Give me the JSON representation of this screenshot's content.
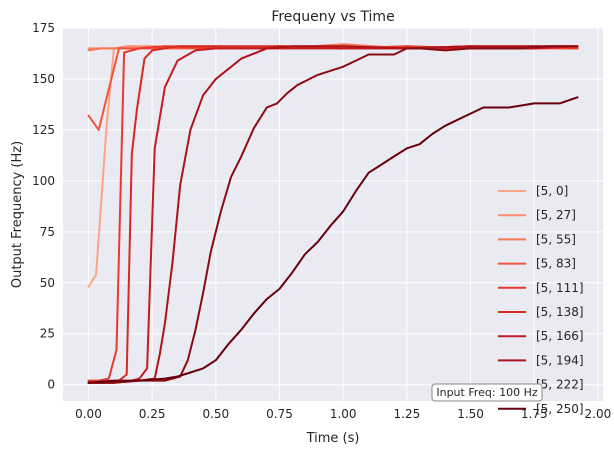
{
  "chart_data": {
    "type": "line",
    "title": "Frequeny vs Time",
    "xlabel": "Time (s)",
    "ylabel": "Output Frequency (Hz)",
    "xlim": [
      -0.1,
      2.02
    ],
    "ylim": [
      -8,
      175
    ],
    "xticks": [
      0.0,
      0.25,
      0.5,
      0.75,
      1.0,
      1.25,
      1.5,
      1.75,
      2.0
    ],
    "xtick_labels": [
      "0.00",
      "0.25",
      "0.50",
      "0.75",
      "1.00",
      "1.25",
      "1.50",
      "1.75",
      "2.00"
    ],
    "yticks": [
      0,
      25,
      50,
      75,
      100,
      125,
      150,
      175
    ],
    "ytick_labels": [
      "0",
      "25",
      "50",
      "75",
      "100",
      "125",
      "150",
      "175"
    ],
    "grid": true,
    "legend_position": "right",
    "annotation": "Input Freq: 100 Hz",
    "series": [
      {
        "name": "[5, 0]",
        "color": "#fca486",
        "x": [
          0,
          0.03,
          0.07,
          0.1,
          0.15,
          0.2,
          0.3,
          0.5,
          0.75,
          1.0,
          1.25,
          1.5,
          1.75,
          1.92
        ],
        "y": [
          48,
          54,
          125,
          165,
          165,
          165,
          166,
          165,
          165,
          166,
          165,
          165,
          165,
          165
        ]
      },
      {
        "name": "[5, 27]",
        "color": "#fb8c6d",
        "x": [
          0,
          0.05,
          0.1,
          0.15,
          0.25,
          0.5,
          0.75,
          1.0,
          1.25,
          1.5,
          1.75,
          1.92
        ],
        "y": [
          165,
          165,
          165,
          166,
          166,
          165,
          166,
          165,
          166,
          165,
          166,
          165
        ]
      },
      {
        "name": "[5, 55]",
        "color": "#f9765a",
        "x": [
          0,
          0.05,
          0.1,
          0.2,
          0.3,
          0.5,
          0.75,
          1.0,
          1.25,
          1.5,
          1.75,
          1.92
        ],
        "y": [
          164,
          165,
          165,
          165,
          166,
          166,
          165,
          167,
          165,
          166,
          166,
          165
        ]
      },
      {
        "name": "[5, 83]",
        "color": "#f4533c",
        "x": [
          0,
          0.04,
          0.08,
          0.12,
          0.16,
          0.25,
          0.5,
          0.75,
          1.0,
          1.25,
          1.5,
          1.75,
          1.92
        ],
        "y": [
          132,
          125,
          145,
          165,
          165,
          165,
          165,
          166,
          166,
          165,
          165,
          165,
          165
        ]
      },
      {
        "name": "[5, 111]",
        "color": "#e7392c",
        "x": [
          0,
          0.04,
          0.08,
          0.11,
          0.14,
          0.2,
          0.3,
          0.5,
          0.75,
          1.0,
          1.25,
          1.5,
          1.75,
          1.92
        ],
        "y": [
          2,
          2,
          3,
          17,
          163,
          165,
          166,
          165,
          166,
          165,
          166,
          165,
          166,
          165
        ]
      },
      {
        "name": "[5, 138]",
        "color": "#d6291f",
        "x": [
          0,
          0.06,
          0.12,
          0.15,
          0.17,
          0.19,
          0.22,
          0.25,
          0.35,
          0.5,
          0.75,
          1.0,
          1.25,
          1.5,
          1.75,
          1.92
        ],
        "y": [
          1,
          1,
          2,
          5,
          113,
          135,
          160,
          164,
          166,
          166,
          166,
          165,
          165,
          166,
          165,
          166
        ]
      },
      {
        "name": "[5, 166]",
        "color": "#c31d22",
        "x": [
          0,
          0.1,
          0.17,
          0.2,
          0.23,
          0.26,
          0.3,
          0.35,
          0.42,
          0.5,
          0.75,
          1.0,
          1.25,
          1.5,
          1.75,
          1.92
        ],
        "y": [
          1,
          1,
          2,
          3,
          8,
          116,
          146,
          159,
          164,
          165,
          165,
          165,
          165,
          165,
          165,
          166
        ]
      },
      {
        "name": "[5, 194]",
        "color": "#ae1319",
        "x": [
          0,
          0.1,
          0.2,
          0.26,
          0.28,
          0.3,
          0.33,
          0.36,
          0.4,
          0.45,
          0.5,
          0.55,
          0.6,
          0.7,
          0.8,
          1.0,
          1.25,
          1.5,
          1.75,
          1.92
        ],
        "y": [
          1,
          1,
          2,
          3,
          15,
          30,
          60,
          98,
          125,
          142,
          150,
          155,
          160,
          165,
          166,
          166,
          165,
          166,
          166,
          166
        ]
      },
      {
        "name": "[5, 222]",
        "color": "#8b0b12",
        "x": [
          0,
          0.1,
          0.2,
          0.3,
          0.36,
          0.39,
          0.42,
          0.45,
          0.48,
          0.52,
          0.56,
          0.6,
          0.65,
          0.7,
          0.74,
          0.78,
          0.82,
          0.9,
          1.0,
          1.05,
          1.1,
          1.2,
          1.25,
          1.3,
          1.4,
          1.5,
          1.6,
          1.7,
          1.8,
          1.92
        ],
        "y": [
          1,
          1,
          2,
          2,
          4,
          12,
          27,
          45,
          65,
          85,
          102,
          112,
          126,
          136,
          138,
          143,
          147,
          152,
          156,
          159,
          162,
          162,
          165,
          165,
          164,
          165,
          165,
          165,
          166,
          166
        ]
      },
      {
        "name": "[5, 250]",
        "color": "#67000d",
        "x": [
          0,
          0.1,
          0.2,
          0.3,
          0.35,
          0.4,
          0.45,
          0.5,
          0.55,
          0.6,
          0.65,
          0.7,
          0.75,
          0.8,
          0.85,
          0.9,
          0.95,
          1.0,
          1.05,
          1.1,
          1.15,
          1.2,
          1.25,
          1.3,
          1.35,
          1.4,
          1.45,
          1.5,
          1.55,
          1.6,
          1.65,
          1.7,
          1.75,
          1.8,
          1.85,
          1.92
        ],
        "y": [
          1,
          2,
          2,
          3,
          4,
          6,
          8,
          12,
          20,
          27,
          35,
          42,
          47,
          55,
          64,
          70,
          78,
          85,
          95,
          104,
          108,
          112,
          116,
          118,
          123,
          127,
          130,
          133,
          136,
          136,
          136,
          137,
          138,
          138,
          138,
          141
        ]
      }
    ]
  }
}
